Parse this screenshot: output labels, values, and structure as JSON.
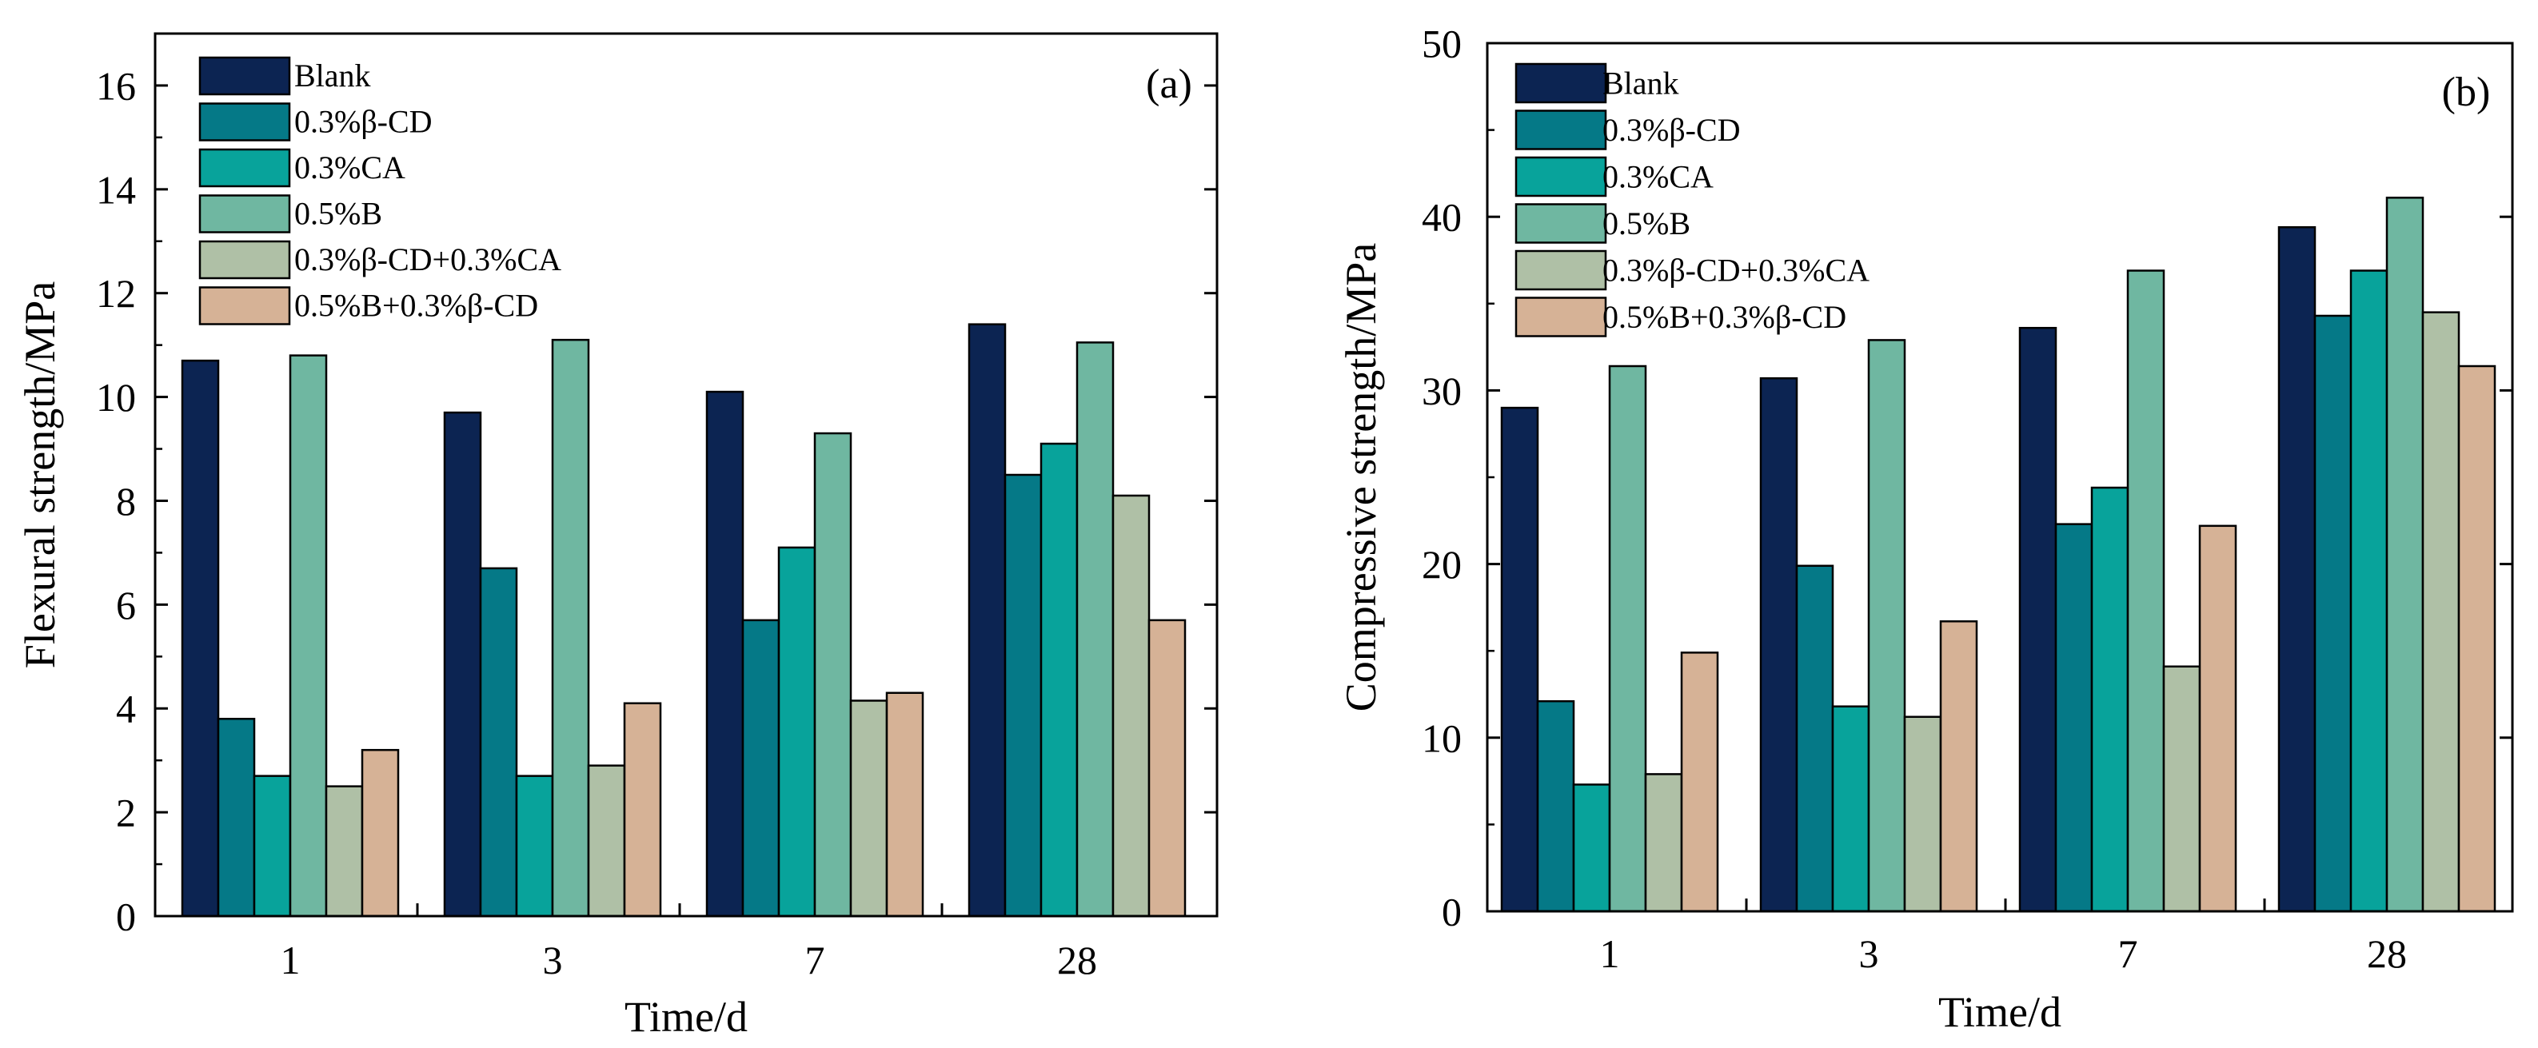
{
  "colors": {
    "series": [
      "#0c2452",
      "#057987",
      "#08a39b",
      "#6fb7a1",
      "#afc0a6",
      "#d6b296"
    ],
    "axis": "#000000",
    "background": "#ffffff"
  },
  "chart_data": [
    {
      "id": "a",
      "type": "bar",
      "panel_label": "(a)",
      "xlabel": "Time/d",
      "ylabel": "Flexural strength/MPa",
      "categories": [
        "1",
        "3",
        "7",
        "28"
      ],
      "ylim": [
        0,
        17
      ],
      "yticks": [
        0,
        2,
        4,
        6,
        8,
        10,
        12,
        14,
        16
      ],
      "ytick_labels": [
        "0",
        "2",
        "4",
        "6",
        "8",
        "10",
        "12",
        "14",
        "16"
      ],
      "legend_position": "top-left",
      "series": [
        {
          "name": "Blank",
          "values": [
            10.7,
            9.7,
            10.1,
            11.4
          ]
        },
        {
          "name": "0.3%β-CD",
          "values": [
            3.8,
            6.7,
            5.7,
            8.5
          ]
        },
        {
          "name": "0.3%CA",
          "values": [
            2.7,
            2.7,
            7.1,
            9.1
          ]
        },
        {
          "name": "0.5%B",
          "values": [
            10.8,
            11.1,
            9.3,
            11.05
          ]
        },
        {
          "name": "0.3%β-CD+0.3%CA",
          "values": [
            2.5,
            2.9,
            4.15,
            8.1
          ]
        },
        {
          "name": "0.5%B+0.3%β-CD",
          "values": [
            3.2,
            4.1,
            4.3,
            5.7
          ]
        }
      ]
    },
    {
      "id": "b",
      "type": "bar",
      "panel_label": "(b)",
      "xlabel": "Time/d",
      "ylabel": "Compressive strength/MPa",
      "categories": [
        "1",
        "3",
        "7",
        "28"
      ],
      "ylim": [
        0,
        50
      ],
      "yticks": [
        0,
        10,
        20,
        30,
        40,
        50
      ],
      "ytick_labels": [
        "0",
        "10",
        "20",
        "30",
        "40",
        "50"
      ],
      "legend_position": "top-left",
      "series": [
        {
          "name": "Blank",
          "values": [
            29.0,
            30.7,
            33.6,
            39.4
          ]
        },
        {
          "name": "0.3%β-CD",
          "values": [
            12.1,
            19.9,
            22.3,
            34.3
          ]
        },
        {
          "name": "0.3%CA",
          "values": [
            7.3,
            11.8,
            24.4,
            36.9
          ]
        },
        {
          "name": "0.5%B",
          "values": [
            31.4,
            32.9,
            36.9,
            41.1
          ]
        },
        {
          "name": "0.3%β-CD+0.3%CA",
          "values": [
            7.9,
            11.2,
            14.1,
            34.5
          ]
        },
        {
          "name": "0.5%B+0.3%β-CD",
          "values": [
            14.9,
            16.7,
            22.2,
            31.4
          ]
        }
      ]
    }
  ]
}
